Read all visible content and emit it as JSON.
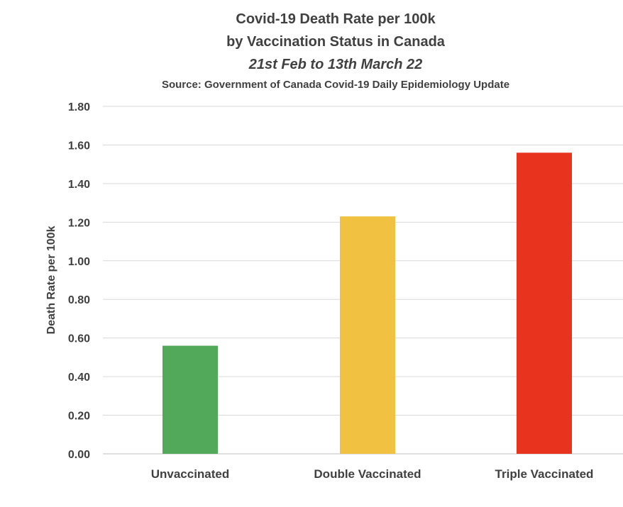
{
  "chart_data": {
    "type": "bar",
    "title": "Covid-19 Death Rate per 100k",
    "title_line2": "by Vaccination Status in Canada",
    "subtitle": "21st Feb to 13th March 22",
    "source": "Source: Government of Canada  Covid-19 Daily Epidemiology Update",
    "xlabel": "",
    "ylabel": "Death Rate per 100k",
    "ylim": [
      0,
      1.8
    ],
    "ytick_step": 0.2,
    "ytick_labels": [
      "0.00",
      "0.20",
      "0.40",
      "0.60",
      "0.80",
      "1.00",
      "1.20",
      "1.40",
      "1.60",
      "1.80"
    ],
    "grid": true,
    "legend": "none",
    "categories": [
      "Unvaccinated",
      "Double Vaccinated",
      "Triple Vaccinated"
    ],
    "values": [
      0.56,
      1.23,
      1.56
    ],
    "bar_colors": [
      "#52a95a",
      "#f1c241",
      "#e8331f"
    ]
  }
}
